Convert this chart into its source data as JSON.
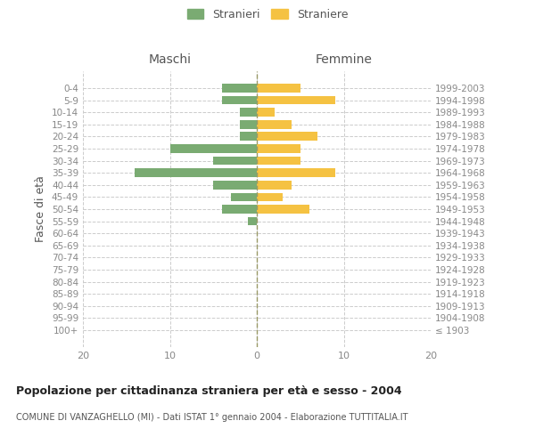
{
  "age_groups": [
    "100+",
    "95-99",
    "90-94",
    "85-89",
    "80-84",
    "75-79",
    "70-74",
    "65-69",
    "60-64",
    "55-59",
    "50-54",
    "45-49",
    "40-44",
    "35-39",
    "30-34",
    "25-29",
    "20-24",
    "15-19",
    "10-14",
    "5-9",
    "0-4"
  ],
  "birth_years": [
    "≤ 1903",
    "1904-1908",
    "1909-1913",
    "1914-1918",
    "1919-1923",
    "1924-1928",
    "1929-1933",
    "1934-1938",
    "1939-1943",
    "1944-1948",
    "1949-1953",
    "1954-1958",
    "1959-1963",
    "1964-1968",
    "1969-1973",
    "1974-1978",
    "1979-1983",
    "1984-1988",
    "1989-1993",
    "1994-1998",
    "1999-2003"
  ],
  "males": [
    0,
    0,
    0,
    0,
    0,
    0,
    0,
    0,
    0,
    1,
    4,
    3,
    5,
    14,
    5,
    10,
    2,
    2,
    2,
    4,
    4
  ],
  "females": [
    0,
    0,
    0,
    0,
    0,
    0,
    0,
    0,
    0,
    0,
    6,
    3,
    4,
    9,
    5,
    5,
    7,
    4,
    2,
    9,
    5
  ],
  "male_color": "#7aab72",
  "female_color": "#f5c242",
  "background_color": "#ffffff",
  "grid_color": "#cccccc",
  "center_line_color": "#999966",
  "xlim": 20,
  "title": "Popolazione per cittadinanza straniera per età e sesso - 2004",
  "subtitle": "COMUNE DI VANZAGHELLO (MI) - Dati ISTAT 1° gennaio 2004 - Elaborazione TUTTITALIA.IT",
  "xlabel_left": "Maschi",
  "xlabel_right": "Femmine",
  "ylabel_left": "Fasce di età",
  "legend_male": "Stranieri",
  "legend_female": "Straniere"
}
